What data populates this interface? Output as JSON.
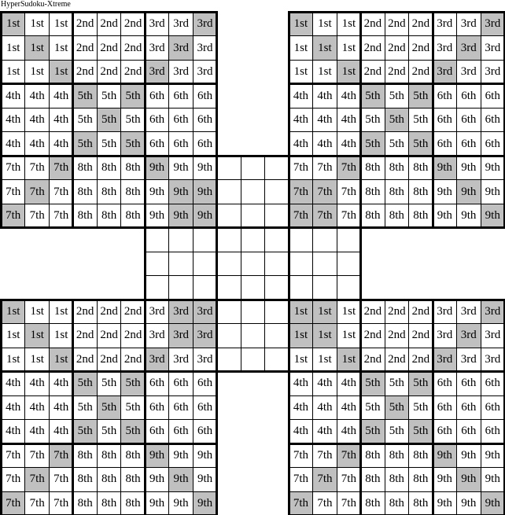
{
  "title": "HyperSudoku-Xtreme",
  "ordinals": [
    "1st",
    "2nd",
    "3rd",
    "4th",
    "5th",
    "6th",
    "7th",
    "8th",
    "9th"
  ],
  "shade_color": "#c0c0c0",
  "grids": [
    {
      "name": "top-left",
      "shaded": [
        [
          0,
          0
        ],
        [
          0,
          8
        ],
        [
          1,
          1
        ],
        [
          1,
          7
        ],
        [
          2,
          2
        ],
        [
          2,
          6
        ],
        [
          3,
          3
        ],
        [
          3,
          5
        ],
        [
          4,
          4
        ],
        [
          5,
          3
        ],
        [
          5,
          5
        ],
        [
          6,
          2
        ],
        [
          6,
          6
        ],
        [
          7,
          1
        ],
        [
          7,
          7
        ],
        [
          7,
          8
        ],
        [
          8,
          0
        ],
        [
          8,
          7
        ],
        [
          8,
          8
        ]
      ]
    },
    {
      "name": "top-right",
      "shaded": [
        [
          0,
          0
        ],
        [
          0,
          8
        ],
        [
          1,
          1
        ],
        [
          1,
          7
        ],
        [
          2,
          2
        ],
        [
          2,
          6
        ],
        [
          3,
          3
        ],
        [
          3,
          5
        ],
        [
          4,
          4
        ],
        [
          5,
          3
        ],
        [
          5,
          5
        ],
        [
          6,
          2
        ],
        [
          6,
          6
        ],
        [
          7,
          0
        ],
        [
          7,
          1
        ],
        [
          7,
          7
        ],
        [
          8,
          0
        ],
        [
          8,
          1
        ],
        [
          8,
          8
        ]
      ]
    },
    {
      "name": "bottom-left",
      "shaded": [
        [
          0,
          0
        ],
        [
          0,
          7
        ],
        [
          0,
          8
        ],
        [
          1,
          1
        ],
        [
          1,
          7
        ],
        [
          1,
          8
        ],
        [
          2,
          2
        ],
        [
          2,
          6
        ],
        [
          3,
          3
        ],
        [
          3,
          5
        ],
        [
          4,
          4
        ],
        [
          5,
          3
        ],
        [
          5,
          5
        ],
        [
          6,
          2
        ],
        [
          6,
          6
        ],
        [
          7,
          1
        ],
        [
          7,
          7
        ],
        [
          8,
          0
        ],
        [
          8,
          8
        ]
      ]
    },
    {
      "name": "bottom-right",
      "shaded": [
        [
          0,
          0
        ],
        [
          0,
          1
        ],
        [
          0,
          8
        ],
        [
          1,
          0
        ],
        [
          1,
          1
        ],
        [
          1,
          7
        ],
        [
          2,
          2
        ],
        [
          2,
          6
        ],
        [
          3,
          3
        ],
        [
          3,
          5
        ],
        [
          4,
          4
        ],
        [
          5,
          3
        ],
        [
          5,
          5
        ],
        [
          6,
          2
        ],
        [
          6,
          6
        ],
        [
          7,
          1
        ],
        [
          7,
          7
        ],
        [
          8,
          0
        ],
        [
          8,
          8
        ]
      ]
    }
  ]
}
